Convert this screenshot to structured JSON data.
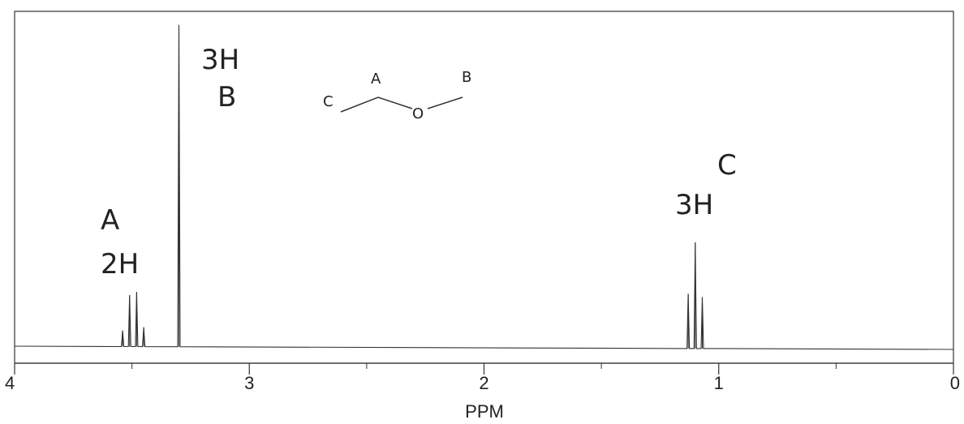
{
  "chart_data": {
    "type": "line",
    "title": "",
    "xlabel": "PPM",
    "ylabel": "",
    "xlim": [
      4,
      0
    ],
    "x_reversed": true,
    "xticks": [
      4,
      3,
      2,
      1,
      0
    ],
    "xticks_minor": [
      3.5,
      2.5,
      1.5,
      0.5
    ],
    "grid": false,
    "peaks": [
      {
        "group": "A",
        "label": "2H",
        "type": "quartet",
        "shifts": [
          3.54,
          3.51,
          3.48,
          3.45
        ],
        "heights": [
          0.05,
          0.16,
          0.17,
          0.06
        ]
      },
      {
        "group": "B",
        "label": "3H",
        "type": "singlet",
        "shifts": [
          3.3
        ],
        "heights": [
          1.0
        ]
      },
      {
        "group": "C",
        "label": "3H",
        "type": "triplet",
        "shifts": [
          1.13,
          1.1,
          1.07
        ],
        "heights": [
          0.17,
          0.33,
          0.16
        ]
      }
    ],
    "annotations": [
      {
        "text": "A",
        "near": "quartet"
      },
      {
        "text": "2H",
        "near": "quartet"
      },
      {
        "text": "3H",
        "near": "singlet"
      },
      {
        "text": "B",
        "near": "singlet"
      },
      {
        "text": "C",
        "near": "triplet"
      },
      {
        "text": "3H",
        "near": "triplet"
      }
    ],
    "structure_labels": {
      "left": "C",
      "middle": "A",
      "oxygen": "O",
      "right": "B"
    }
  }
}
